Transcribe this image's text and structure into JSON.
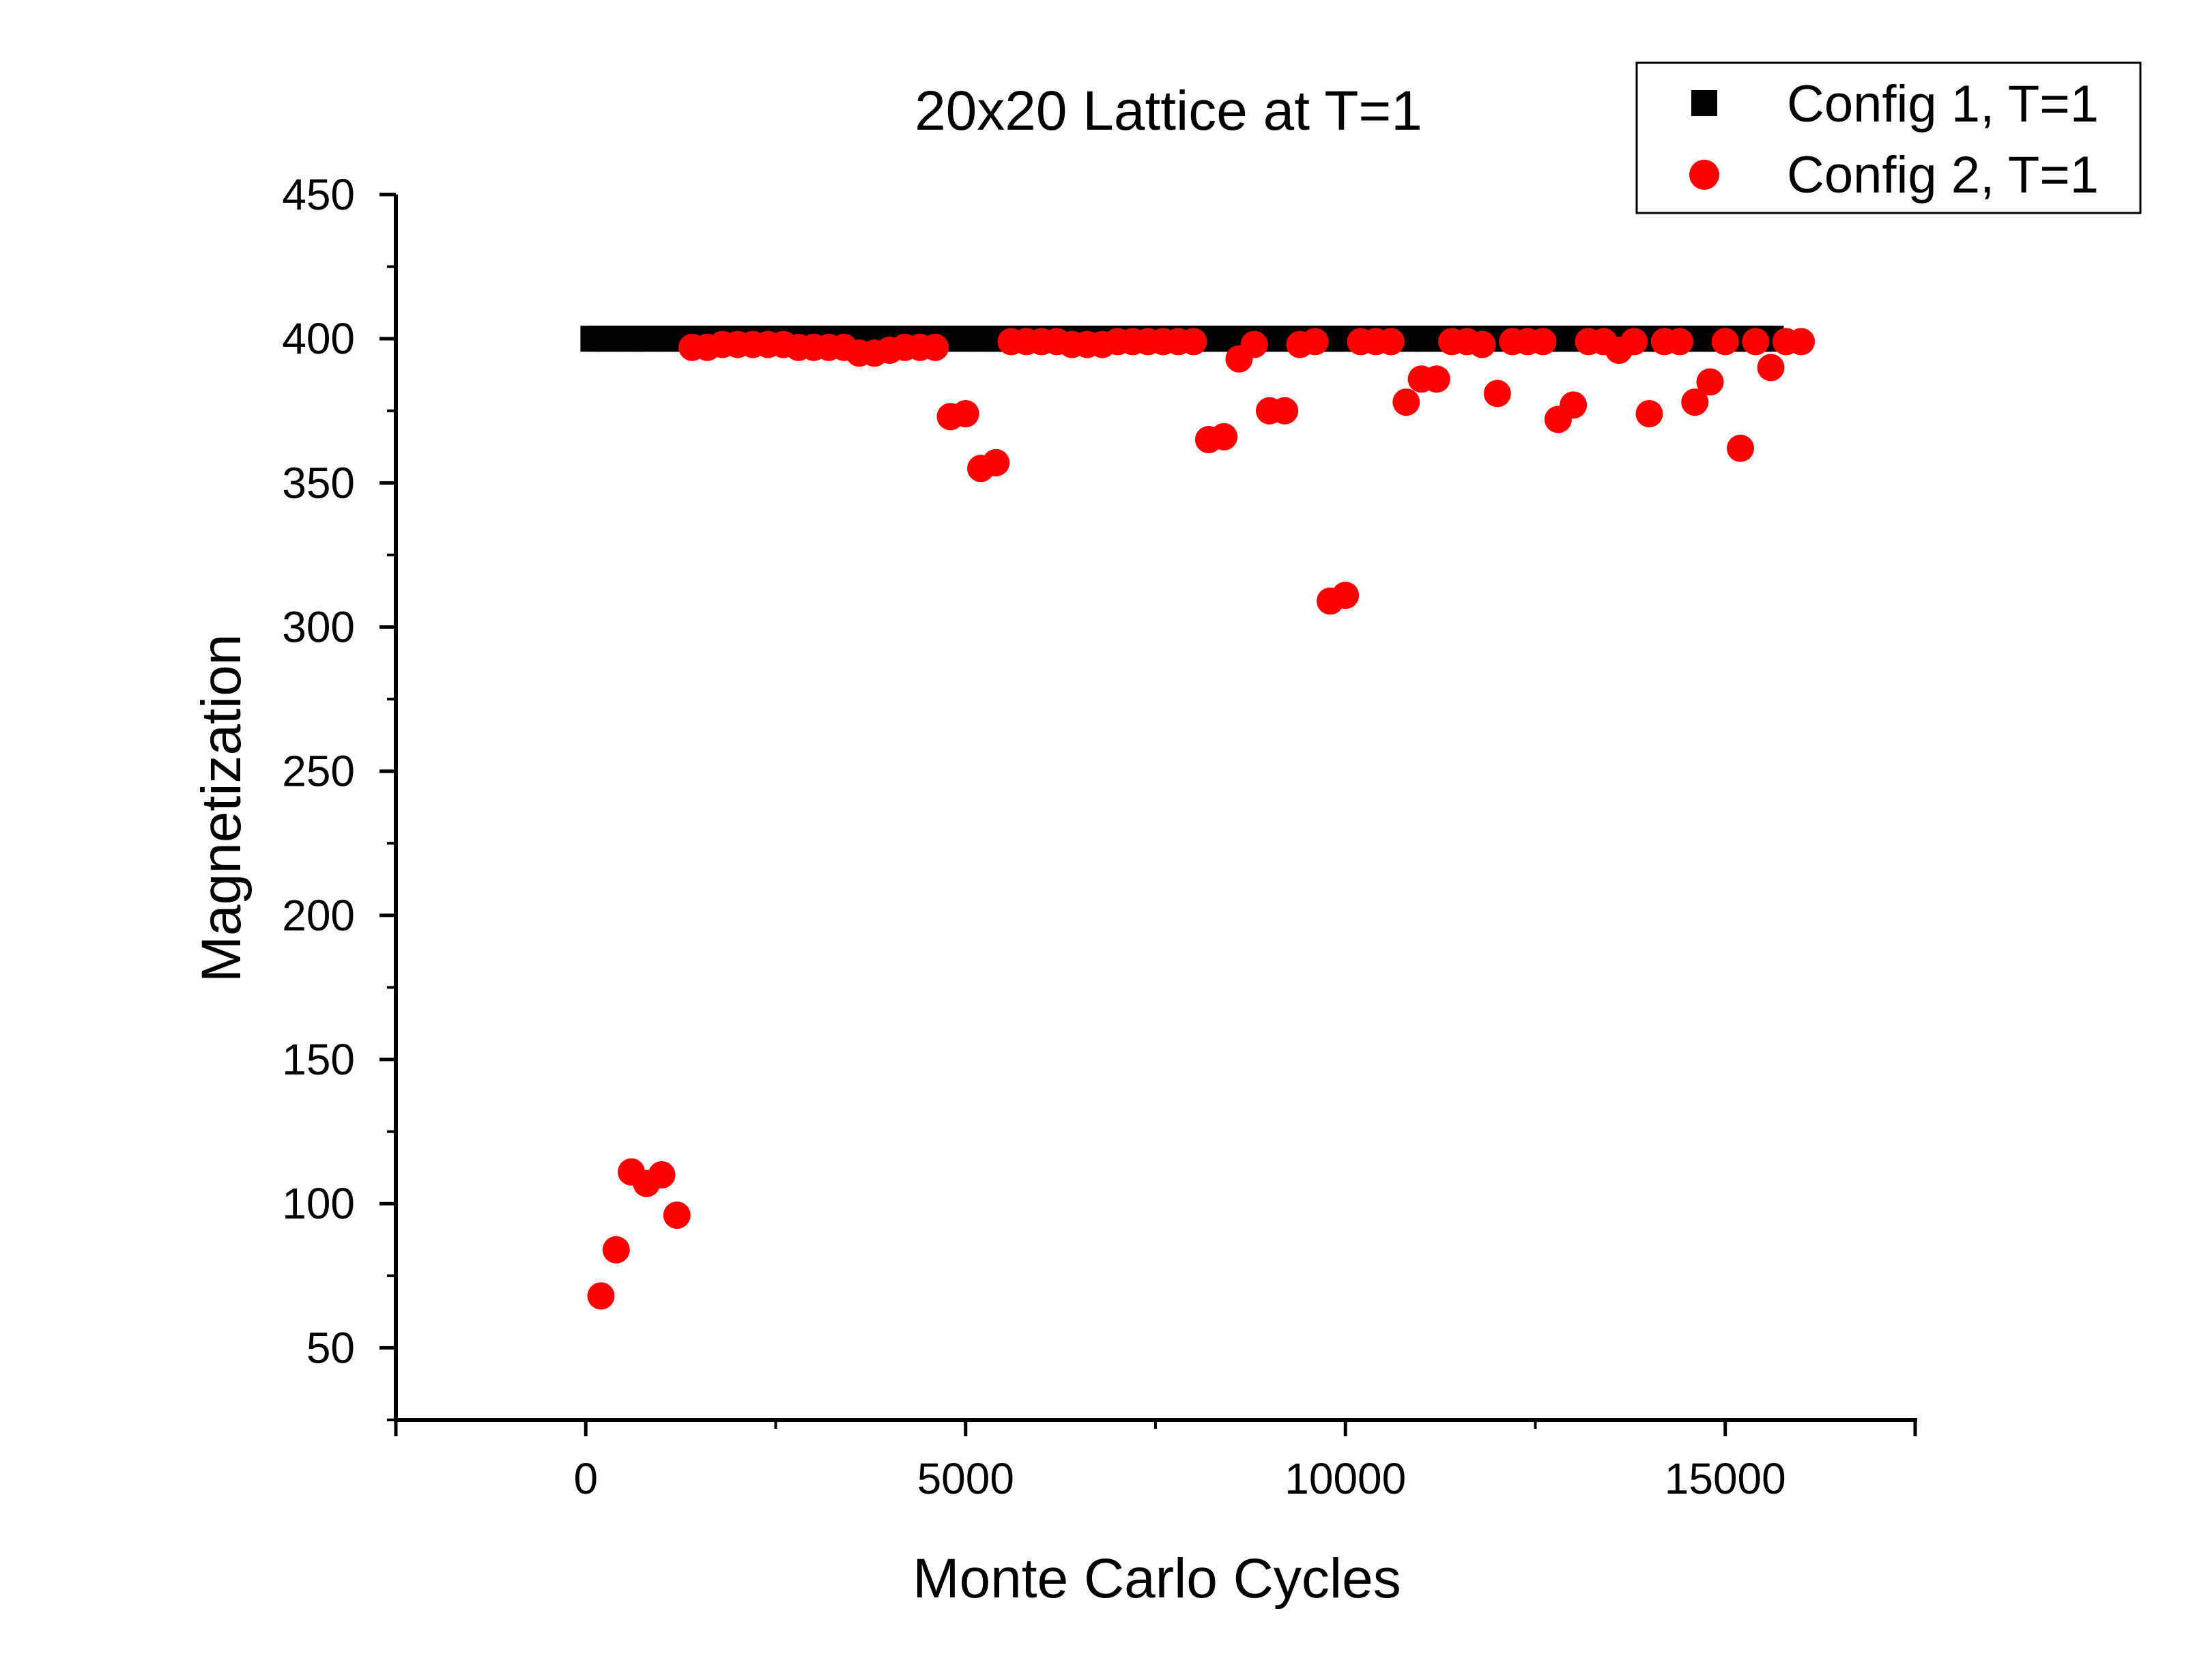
{
  "chart_data": {
    "type": "scatter",
    "title": "20x20 Lattice at T=1",
    "xlabel": "Monte Carlo Cycles",
    "ylabel": "Magnetization",
    "xlim": [
      -2500,
      17500
    ],
    "ylim": [
      25,
      450
    ],
    "xticks": [
      0,
      5000,
      10000,
      15000
    ],
    "yticks": [
      50,
      100,
      150,
      200,
      250,
      300,
      350,
      400,
      450
    ],
    "grid": false,
    "legend": "top-right",
    "series": [
      {
        "name": "Config 1, T=1",
        "marker": "square",
        "color": "#000000",
        "x_start": 100,
        "x_end": 15600,
        "y_value": 400
      },
      {
        "name": "Config 2, T=1",
        "marker": "circle",
        "color": "#ff0000",
        "points": [
          [
            200,
            68
          ],
          [
            400,
            84
          ],
          [
            600,
            111
          ],
          [
            800,
            107
          ],
          [
            1000,
            110
          ],
          [
            1200,
            96
          ],
          [
            1400,
            397
          ],
          [
            1600,
            397
          ],
          [
            1800,
            398
          ],
          [
            2000,
            398
          ],
          [
            2200,
            398
          ],
          [
            2400,
            398
          ],
          [
            2600,
            398
          ],
          [
            2800,
            397
          ],
          [
            3000,
            397
          ],
          [
            3200,
            397
          ],
          [
            3400,
            397
          ],
          [
            3600,
            395
          ],
          [
            3800,
            395
          ],
          [
            4000,
            396
          ],
          [
            4200,
            397
          ],
          [
            4400,
            397
          ],
          [
            4600,
            397
          ],
          [
            4800,
            373
          ],
          [
            5000,
            374
          ],
          [
            5200,
            355
          ],
          [
            5400,
            357
          ],
          [
            5600,
            399
          ],
          [
            5800,
            399
          ],
          [
            6000,
            399
          ],
          [
            6200,
            399
          ],
          [
            6400,
            398
          ],
          [
            6600,
            398
          ],
          [
            6800,
            398
          ],
          [
            7000,
            399
          ],
          [
            7200,
            399
          ],
          [
            7400,
            399
          ],
          [
            7600,
            399
          ],
          [
            7800,
            399
          ],
          [
            8000,
            399
          ],
          [
            8200,
            365
          ],
          [
            8400,
            366
          ],
          [
            8600,
            393
          ],
          [
            8800,
            398
          ],
          [
            9000,
            375
          ],
          [
            9200,
            375
          ],
          [
            9400,
            398
          ],
          [
            9600,
            399
          ],
          [
            9800,
            309
          ],
          [
            10000,
            311
          ],
          [
            10200,
            399
          ],
          [
            10400,
            399
          ],
          [
            10600,
            399
          ],
          [
            10800,
            378
          ],
          [
            11000,
            386
          ],
          [
            11200,
            386
          ],
          [
            11400,
            399
          ],
          [
            11600,
            399
          ],
          [
            11800,
            398
          ],
          [
            12000,
            381
          ],
          [
            12200,
            399
          ],
          [
            12400,
            399
          ],
          [
            12600,
            399
          ],
          [
            12800,
            372
          ],
          [
            13000,
            377
          ],
          [
            13200,
            399
          ],
          [
            13400,
            399
          ],
          [
            13600,
            396
          ],
          [
            13800,
            399
          ],
          [
            14000,
            374
          ],
          [
            14200,
            399
          ],
          [
            14400,
            399
          ],
          [
            14600,
            378
          ],
          [
            14800,
            385
          ],
          [
            15000,
            399
          ],
          [
            15200,
            362
          ],
          [
            15400,
            399
          ],
          [
            15600,
            390
          ],
          [
            15800,
            399
          ],
          [
            16000,
            399
          ]
        ]
      }
    ]
  }
}
